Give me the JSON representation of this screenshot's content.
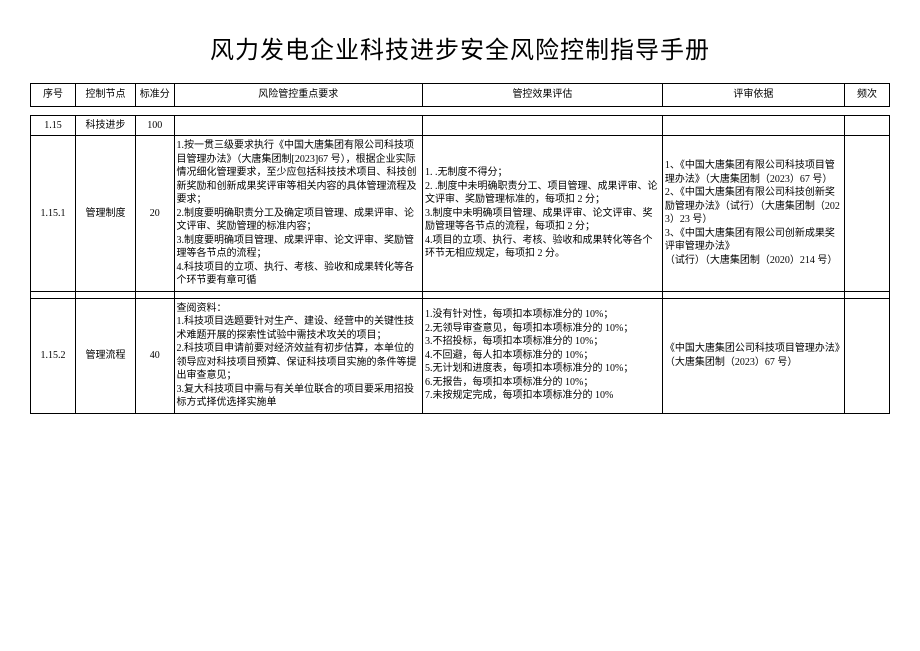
{
  "page": {
    "title": "风力发电企业科技进步安全风险控制指导手册",
    "background_color": "#ffffff",
    "text_color": "#000000",
    "border_color": "#000000"
  },
  "columns": {
    "num": "序号",
    "node": "控制节点",
    "score": "标准分",
    "req": "风险管控重点要求",
    "eval": "管控效果评估",
    "basis": "评审依据",
    "freq": "频次"
  },
  "rows": [
    {
      "num": "1.15",
      "node": "科技进步",
      "score": "100",
      "req": "",
      "eval": "",
      "basis": "",
      "freq": ""
    },
    {
      "num": "1.15.1",
      "node": "管理制度",
      "score": "20",
      "req": "1.按一贯三级要求执行《中国大唐集团有限公司科技项目管理办法》（大唐集团制[2023]67 号），根据企业实际情况细化管理要求，至少应包括科技技术项目、科技创新奖励和创新成果奖评审等相关内容的具体管理流程及要求；\n2.制度要明确职责分工及确定项目管理、成果评审、论文评审、奖励管理的标准内容；\n3.制度要明确项目管理、成果评审、论文评审、奖励管理等各节点的流程；\n4.科技项目的立项、执行、考核、验收和成果转化等各个环节要有章可循",
      "eval": "1.   .无制度不得分；\n2.   .制度中未明确职责分工、项目管理、成果评审、论文评审、奖励管理标准的，每项扣 2 分；\n3.制度中未明确项目管理、成果评审、论文评审、奖励管理等各节点的流程，每项扣 2 分；\n4.项目的立项、执行、考核、验收和成果转化等各个环节无相应规定，每项扣 2 分。",
      "basis": "1、《中国大唐集团有限公司科技项目管理办法》（大唐集团制（2023）67 号）\n2、《中国大唐集团有限公司科技创新奖励管理办法》（试行）（大唐集团制（2023）23 号）\n3、《中国大唐集团有限公司创新成果奖评审管理办法》\n（试行）（大唐集团制（2020）214 号）",
      "freq": ""
    },
    {
      "num": "1.15.2",
      "node": "管理流程",
      "score": "40",
      "req": "查阅资料：\n1.科技项目选题要针对生产、建设、经营中的关键性技术难题开展的探索性试验中需技术攻关的项目；\n2.科技项目申请前要对经济效益有初步估算，本单位的领导应对科技项目预算、保证科技项目实施的条件等提出审查意见；\n3.复大科技项目中需与有关单位联合的项目要采用招投标方式择优选择实施单",
      "eval": "1.没有针对性，每项扣本项标准分的 10%；\n2.无领导审查意见，每项扣本项标准分的 10%；\n3.不招投标，每项扣本项标准分的 10%；\n4.不回避，每人扣本项标准分的 10%；\n5.无计划和进度表，每项扣本项标准分的 10%；\n6.无报告，每项扣本项标准分的 10%；\n7.未按规定完成，每项扣本项标准分的 10%",
      "basis": "《中国大唐集团公司科技项目管理办法》（大唐集团制（2023）67 号）",
      "freq": ""
    }
  ]
}
